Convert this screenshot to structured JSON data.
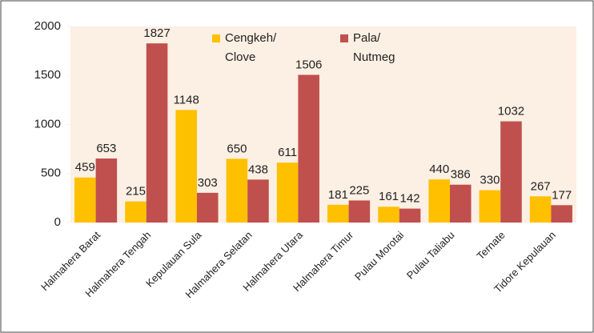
{
  "chart_data": {
    "type": "bar",
    "categories": [
      "Halmahera Barat",
      "Halmahera Tengah",
      "Kepulauan Sula",
      "Halmahera Selatan",
      "Halmahera Utara",
      "Halmahera Timur",
      "Pulau Morotai",
      "Pulau Taliabu",
      "Ternate",
      "Tidore Kepulauan"
    ],
    "series": [
      {
        "name": "Cengkeh/\nClove",
        "color": "#ffc000",
        "values": [
          459,
          215,
          1148,
          650,
          611,
          181,
          161,
          440,
          330,
          267
        ]
      },
      {
        "name": "Pala/\nNutmeg",
        "color": "#c0504d",
        "values": [
          653,
          1827,
          303,
          438,
          1506,
          225,
          142,
          386,
          1032,
          177
        ]
      }
    ],
    "ylim": [
      0,
      2000
    ],
    "yticks": [
      0,
      500,
      1000,
      1500,
      2000
    ],
    "legend": "top"
  }
}
